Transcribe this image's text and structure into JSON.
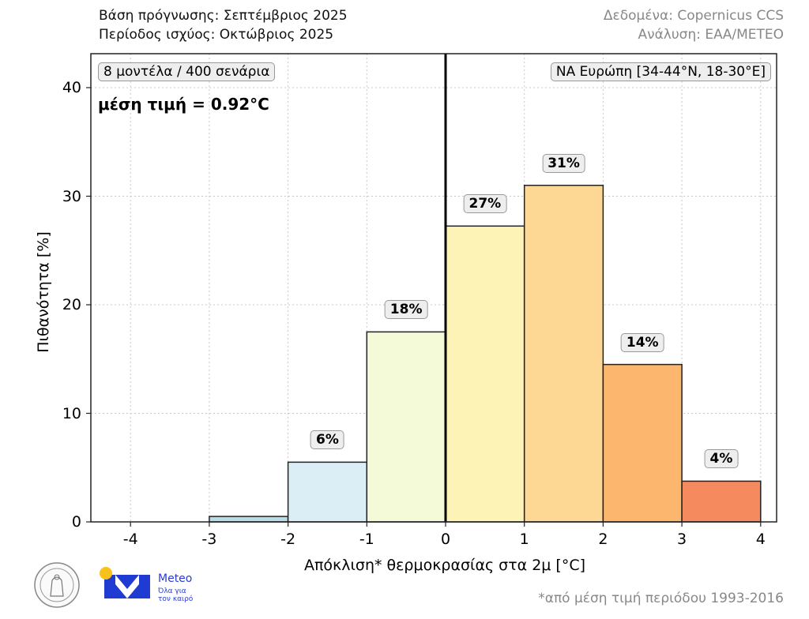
{
  "header": {
    "left_line1": "Βάση πρόγνωσης: Σεπτέμβριος 2025",
    "left_line2": "Περίοδος ισχύος: Οκτώβριος 2025",
    "right_line1": "Δεδομένα: Copernicus CCS",
    "right_line2": "Ανάλυση: ΕΑΑ/METEO"
  },
  "annotations": {
    "ensemble": "8 μοντέλα / 400 σενάρια",
    "mean": "μέση τιμή = 0.92°C",
    "region": "ΝΑ Ευρώπη [34-44°N, 18-30°E]"
  },
  "footer": {
    "note": "*από μέση τιμή περιόδου 1993-2016",
    "meteo_name": "Meteo",
    "meteo_tag1": "Όλα για",
    "meteo_tag2": "τον καιρό"
  },
  "colors": {
    "bar_edge": "#222222",
    "mean_line": "#000000",
    "meteo_blue": "#1f3bd1",
    "meteo_sun": "#f7c21b"
  },
  "chart_data": {
    "type": "bar",
    "title": "",
    "xlabel": "Απόκλιση* θερμοκρασίας στα 2μ [°C]",
    "ylabel": "Πιθανότητα [%]",
    "xlim": [
      -4.5,
      4.2
    ],
    "ylim": [
      0,
      43
    ],
    "x_ticks": [
      -4,
      -3,
      -2,
      -1,
      0,
      1,
      2,
      3,
      4
    ],
    "y_ticks": [
      0,
      10,
      20,
      30,
      40
    ],
    "grid": true,
    "bins": [
      {
        "from": -3,
        "to": -2,
        "value": 0.5,
        "label": "",
        "color": "#b7dde9"
      },
      {
        "from": -2,
        "to": -1,
        "value": 5.5,
        "label": "6%",
        "color": "#dbeef5"
      },
      {
        "from": -1,
        "to": 0,
        "value": 17.5,
        "label": "18%",
        "color": "#f4fad7"
      },
      {
        "from": 0,
        "to": 1,
        "value": 27.25,
        "label": "27%",
        "color": "#fdf3b7"
      },
      {
        "from": 1,
        "to": 2,
        "value": 31.0,
        "label": "31%",
        "color": "#fcd894"
      },
      {
        "from": 2,
        "to": 3,
        "value": 14.5,
        "label": "14%",
        "color": "#fcb66e"
      },
      {
        "from": 3,
        "to": 4,
        "value": 3.75,
        "label": "4%",
        "color": "#f58a5e"
      }
    ],
    "reference_line_x": 0
  }
}
